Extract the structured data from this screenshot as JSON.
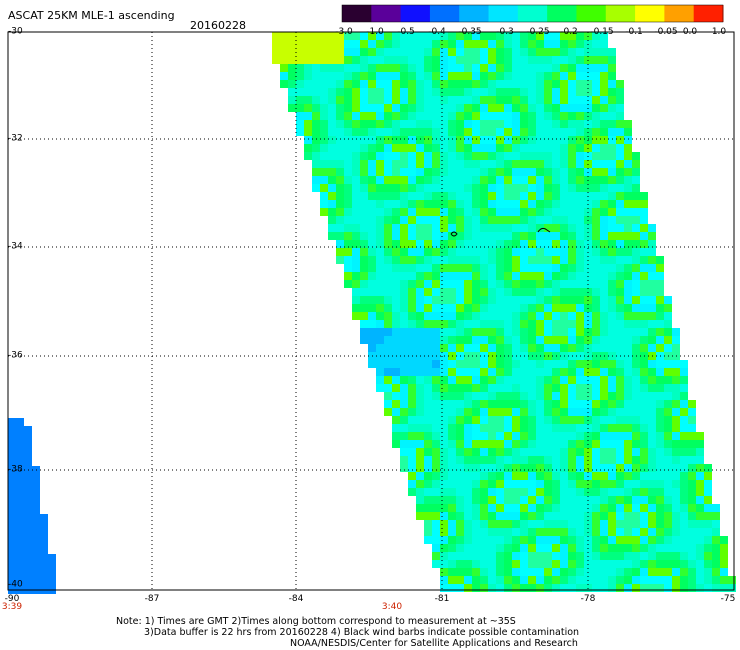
{
  "title": "ASCAT 25KM MLE-1 ascending",
  "date": "20160228",
  "colorbar": {
    "labels": [
      "-3.0",
      "-1.0",
      "-0.5",
      "-0.4",
      "-0.35",
      "-0.3",
      "-0.25",
      "-0.2",
      "-0.15",
      "-0.1",
      "-0.05",
      "0.0",
      "1.0"
    ],
    "colors": [
      "#2a0030",
      "#5a009a",
      "#1010ff",
      "#0070ff",
      "#00b4ff",
      "#00e6ff",
      "#00ffd0",
      "#00ff60",
      "#40ff00",
      "#a8ff00",
      "#ffff00",
      "#ffa000",
      "#ff2000"
    ]
  },
  "lat_labels": [
    "-30",
    "-32",
    "-34",
    "-36",
    "-38",
    "-40"
  ],
  "lon_labels": [
    "-90",
    "-87",
    "-84",
    "-81",
    "-78",
    "-75"
  ],
  "time_labels": [
    "3:39",
    "3:40"
  ],
  "notes": [
    "Note: 1) Times are GMT 2)Times along bottom correspond to measurement at ~35S",
    "3)Data buffer is 22 hrs from 20160228 4) Black wind barbs indicate possible contamination",
    "NOAA/NESDIS/Center for Satellite Applications and Research"
  ]
}
